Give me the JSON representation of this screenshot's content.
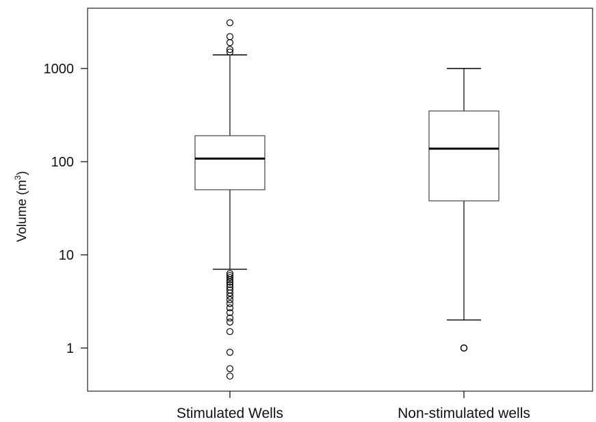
{
  "chart_data": {
    "type": "box",
    "ylabel": "Volume (m3)",
    "ylabel_main": "Volume (m",
    "ylabel_sup": "3",
    "ylabel_close": ")",
    "yscale": "log",
    "ylim": [
      0.4,
      4000
    ],
    "yticks": [
      1,
      10,
      100,
      1000
    ],
    "ytick_labels": [
      "1",
      "10",
      "100",
      "1000"
    ],
    "grid": false,
    "categories": [
      "Stimulated Wells",
      "Non-stimulated wells"
    ],
    "boxes": [
      {
        "category": "Stimulated Wells",
        "whisker_low": 7,
        "q1": 50,
        "median": 108,
        "q3": 190,
        "whisker_high": 1400,
        "outliers": [
          0.5,
          0.6,
          0.9,
          1.5,
          1.9,
          2.1,
          2.4,
          2.7,
          3.0,
          3.3,
          3.6,
          3.9,
          4.2,
          4.5,
          4.8,
          5.1,
          5.4,
          5.7,
          6.0,
          6.3,
          1500,
          1600,
          1900,
          2200,
          3100
        ]
      },
      {
        "category": "Non-stimulated wells",
        "whisker_low": 2,
        "q1": 38,
        "median": 138,
        "q3": 350,
        "whisker_high": 1000,
        "outliers": [
          1,
          1,
          1
        ]
      }
    ],
    "colors": {
      "line": "#000000",
      "background": "#ffffff"
    }
  }
}
